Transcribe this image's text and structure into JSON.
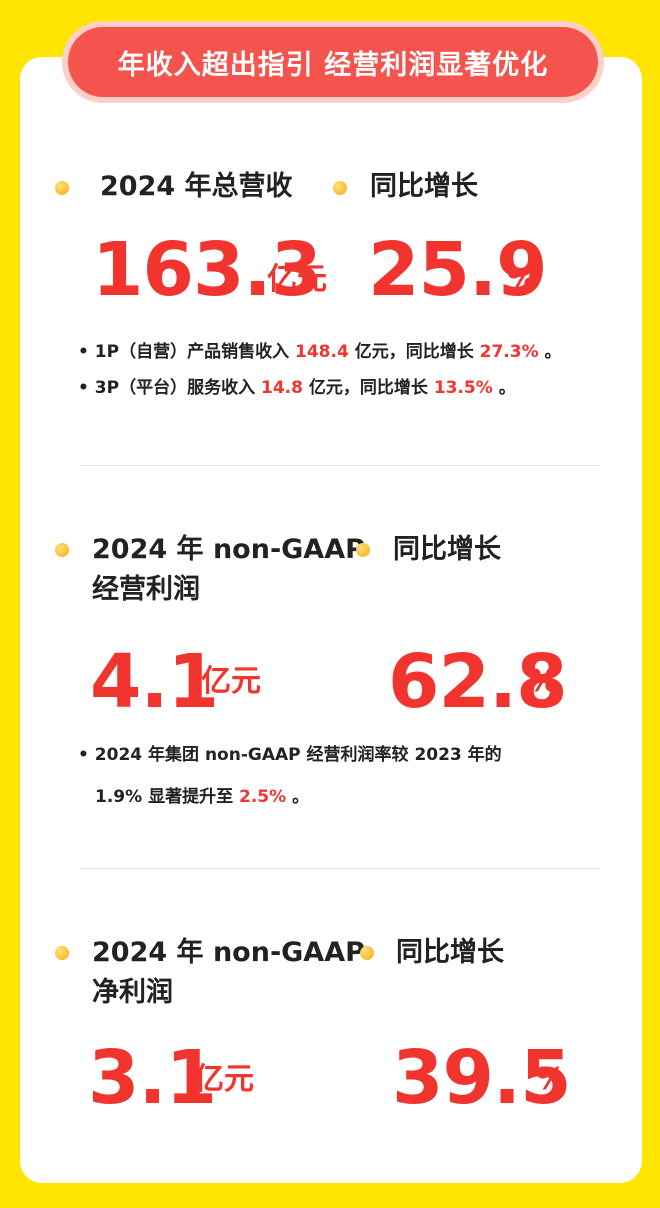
{
  "banner": "年收入超出指引 经营利润显著优化",
  "s1": {
    "label_left": "2024 年总营收",
    "label_right": "同比增长",
    "value_left": "163.3",
    "unit_left": "亿元",
    "value_right": "25.9",
    "unit_right": "%",
    "b1_pre": "1P（自营）产品销售收入 ",
    "b1_v1": "148.4",
    "b1_mid": " 亿元，同比增长 ",
    "b1_v2": "27.3%",
    "b1_end": " 。",
    "b2_pre": "3P（平台）服务收入 ",
    "b2_v1": "14.8",
    "b2_mid": " 亿元，同比增长 ",
    "b2_v2": "13.5%",
    "b2_end": " 。"
  },
  "s2": {
    "label_left_1": "2024 年 non-GAAP",
    "label_left_2": "经营利润",
    "label_right": "同比增长",
    "value_left": "4.1",
    "unit_left": "亿元",
    "value_right": "62.8",
    "unit_right": "%",
    "b1_line1": "2024 年集团 non-GAAP 经营利润率较 2023 年的",
    "b1_line2_pre": "1.9% 显著提升至 ",
    "b1_line2_v": "2.5%",
    "b1_line2_end": " 。"
  },
  "s3": {
    "label_left_1": "2024 年 non-GAAP",
    "label_left_2": "净利润",
    "label_right": "同比增长",
    "value_left": "3.1",
    "unit_left": "亿元",
    "value_right": "39.5",
    "unit_right": "%"
  }
}
